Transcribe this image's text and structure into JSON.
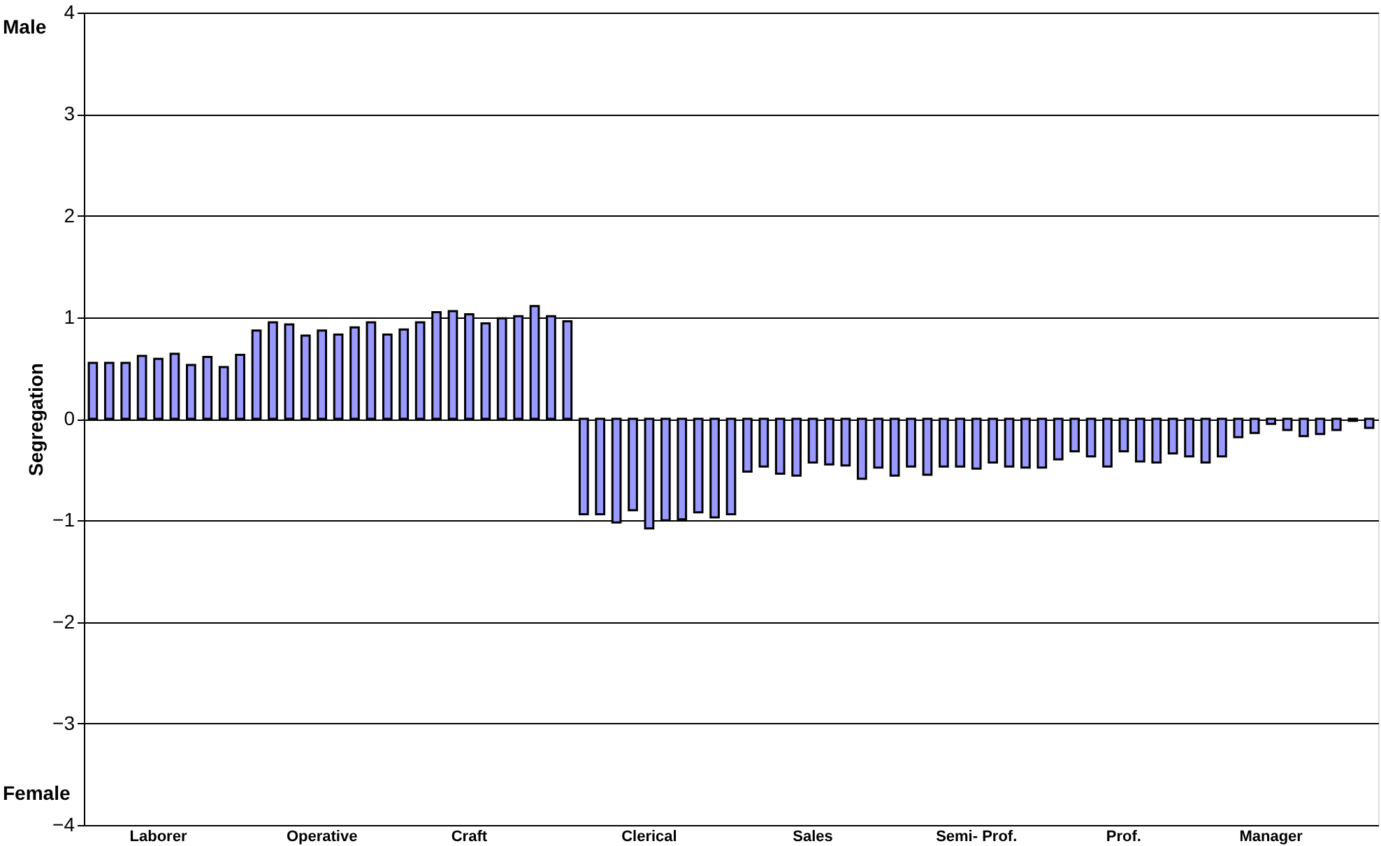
{
  "chart_data": {
    "type": "bar",
    "ylabel": "Segregation",
    "categories": [
      null,
      null,
      null,
      null,
      "Laborer",
      null,
      null,
      null,
      null,
      null,
      null,
      null,
      null,
      null,
      "Operative",
      null,
      null,
      null,
      null,
      null,
      null,
      null,
      null,
      "Craft",
      null,
      null,
      null,
      null,
      null,
      null,
      null,
      null,
      null,
      null,
      "Clerical",
      null,
      null,
      null,
      null,
      null,
      null,
      null,
      null,
      null,
      "Sales",
      null,
      null,
      null,
      null,
      null,
      null,
      null,
      null,
      null,
      "Semi- Prof.",
      null,
      null,
      null,
      null,
      null,
      null,
      null,
      null,
      "Prof.",
      null,
      null,
      null,
      null,
      null,
      null,
      null,
      null,
      "Manager",
      null,
      null,
      null,
      null,
      null,
      null
    ],
    "values": [
      0.55,
      0.55,
      0.55,
      0.62,
      0.59,
      0.64,
      0.53,
      0.61,
      0.51,
      0.63,
      0.87,
      0.95,
      0.93,
      0.82,
      0.87,
      0.83,
      0.9,
      0.95,
      0.83,
      0.88,
      0.95,
      1.05,
      1.06,
      1.03,
      0.94,
      0.99,
      1.01,
      1.11,
      1.01,
      0.96,
      -0.94,
      -0.94,
      -1.02,
      -0.9,
      -1.08,
      -1.0,
      -0.99,
      -0.92,
      -0.97,
      -0.94,
      -0.52,
      -0.47,
      -0.54,
      -0.56,
      -0.43,
      -0.45,
      -0.46,
      -0.59,
      -0.48,
      -0.56,
      -0.47,
      -0.55,
      -0.47,
      -0.47,
      -0.49,
      -0.43,
      -0.47,
      -0.48,
      -0.48,
      -0.4,
      -0.32,
      -0.37,
      -0.47,
      -0.32,
      -0.42,
      -0.43,
      -0.34,
      -0.37,
      -0.43,
      -0.37,
      -0.18,
      -0.14,
      -0.05,
      -0.11,
      -0.17,
      -0.15,
      -0.11,
      -0.02,
      -0.09
    ],
    "color": "#9999ff",
    "ylim": [
      -4,
      4
    ],
    "yticks": [
      -4,
      -3,
      -2,
      -1,
      0,
      1,
      2,
      3,
      4
    ],
    "grid": "y",
    "annotations": [
      "Male",
      "Female"
    ]
  }
}
